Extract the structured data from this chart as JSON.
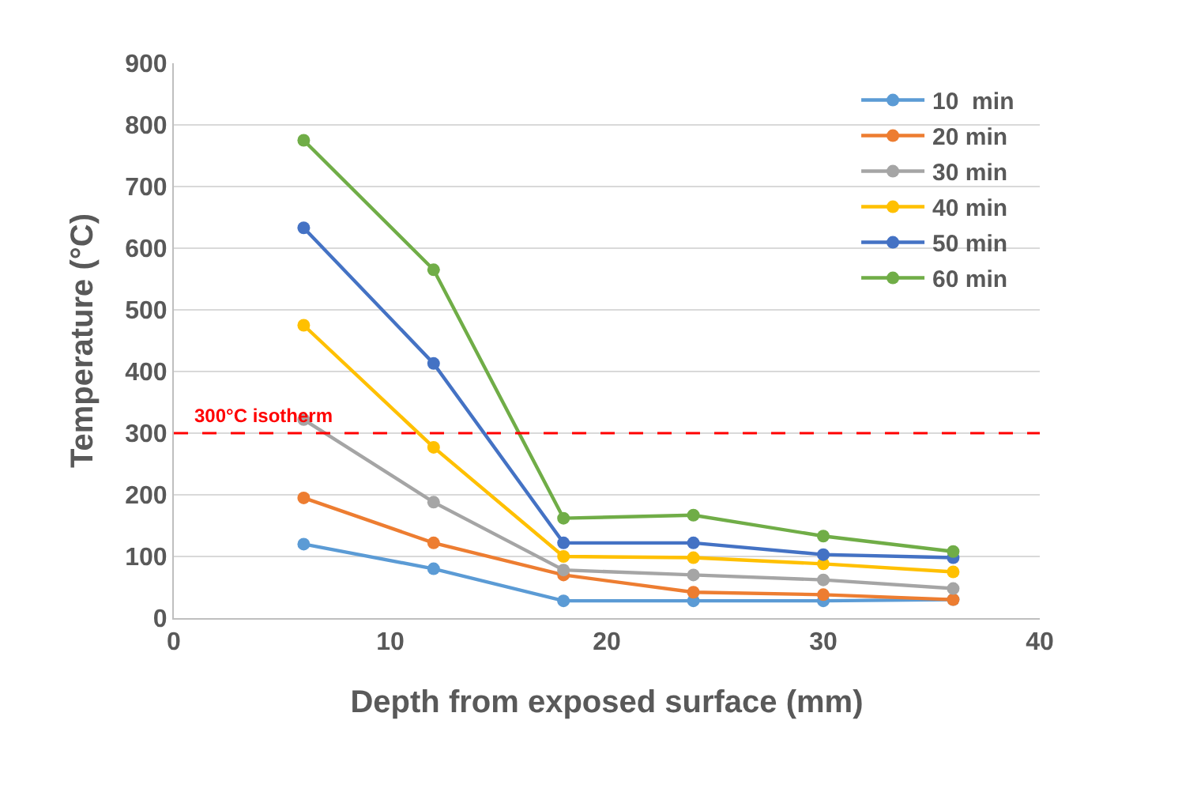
{
  "chart_data": {
    "type": "line",
    "xlabel": "Depth from exposed surface (mm)",
    "ylabel": "Temperature (°C)",
    "x": [
      6,
      12,
      18,
      24,
      30,
      36
    ],
    "series": [
      {
        "name": "10  min",
        "color": "#5b9bd5",
        "values": [
          120,
          80,
          28,
          28,
          28,
          30
        ]
      },
      {
        "name": "20 min",
        "color": "#ed7d31",
        "values": [
          195,
          122,
          70,
          42,
          38,
          30
        ]
      },
      {
        "name": "30 min",
        "color": "#a5a5a5",
        "values": [
          322,
          188,
          78,
          70,
          62,
          48
        ]
      },
      {
        "name": "40 min",
        "color": "#ffc000",
        "values": [
          475,
          277,
          100,
          98,
          88,
          75
        ]
      },
      {
        "name": "50 min",
        "color": "#4472c4",
        "values": [
          633,
          413,
          122,
          122,
          103,
          98
        ]
      },
      {
        "name": "60 min",
        "color": "#70ad47",
        "values": [
          775,
          565,
          162,
          167,
          133,
          108
        ]
      }
    ],
    "xlim": [
      0,
      40
    ],
    "xticks": [
      0,
      10,
      20,
      30,
      40
    ],
    "ylim": [
      0,
      900
    ],
    "yticks": [
      0,
      100,
      200,
      300,
      400,
      500,
      600,
      700,
      800,
      900
    ],
    "ref_lines": [
      {
        "axis": "y",
        "value": 300,
        "label": "300°C isotherm",
        "color": "#ff0000",
        "line_style": "dashed"
      }
    ],
    "grid": "y",
    "legend": "top right",
    "marker": "circle",
    "line_style": "solid"
  }
}
